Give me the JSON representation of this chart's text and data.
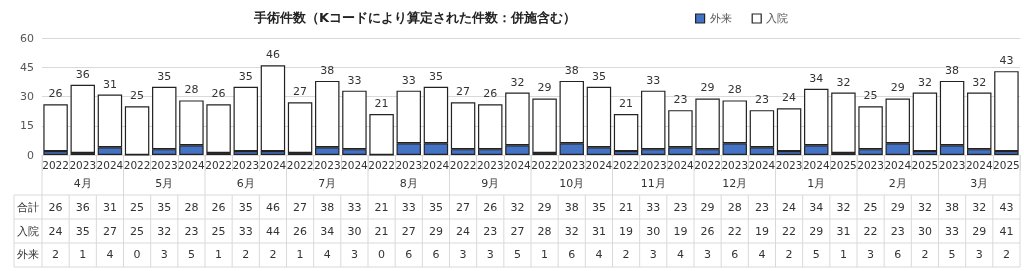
{
  "chart_data": {
    "type": "bar",
    "title": "手術件数（Kコードにより算定された件数：併施含む）",
    "categories": [
      "2022",
      "2023",
      "2024",
      "2022",
      "2023",
      "2024",
      "2022",
      "2023",
      "2024",
      "2022",
      "2023",
      "2024",
      "2022",
      "2023",
      "2024",
      "2022",
      "2023",
      "2024",
      "2022",
      "2023",
      "2024",
      "2022",
      "2023",
      "2024",
      "2022",
      "2023",
      "2024",
      "2023",
      "2024",
      "2025",
      "2023",
      "2024",
      "2025",
      "2023",
      "2024",
      "2025"
    ],
    "series": [
      {
        "name": "外来",
        "color": "#4472c4",
        "values": [
          2,
          1,
          4,
          0,
          3,
          5,
          1,
          2,
          2,
          1,
          4,
          3,
          0,
          6,
          6,
          3,
          3,
          5,
          1,
          6,
          4,
          2,
          3,
          4,
          3,
          6,
          4,
          2,
          5,
          1,
          3,
          6,
          2,
          5,
          3,
          2
        ]
      },
      {
        "name": "入院",
        "color": "#ffffff",
        "values": [
          24,
          35,
          27,
          25,
          32,
          23,
          25,
          33,
          44,
          26,
          34,
          30,
          21,
          27,
          29,
          24,
          23,
          27,
          28,
          32,
          31,
          19,
          30,
          19,
          26,
          22,
          19,
          22,
          29,
          31,
          22,
          23,
          30,
          33,
          29,
          41
        ]
      }
    ],
    "totals": [
      "26",
      "36",
      "31",
      "25",
      "35",
      "28",
      "26",
      "35",
      "46",
      "27",
      "38",
      "33",
      "21",
      "33",
      "35",
      "27",
      "26",
      "32",
      "29",
      "38",
      "35",
      "21",
      "33",
      "23",
      "29",
      "28",
      "23",
      "24",
      "34",
      "32",
      "25",
      "29",
      "32",
      "38",
      "32",
      "43"
    ],
    "annotations": [
      "4月",
      "5月",
      "6月",
      "7月",
      "8月",
      "9月",
      "10月",
      "11月",
      "12月",
      "1月",
      "2月",
      "3月",
      "合計"
    ],
    "stacked": true,
    "data_labels": true,
    "ylim": [
      0,
      60
    ],
    "yticks": [
      0,
      15,
      30,
      45,
      60
    ],
    "grid": "y",
    "legend": "top"
  }
}
